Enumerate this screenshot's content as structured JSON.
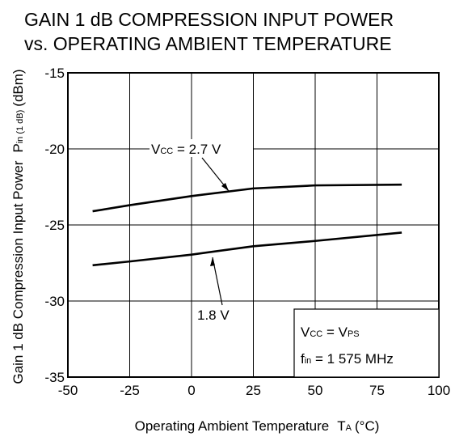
{
  "chart_data": {
    "type": "line",
    "title": [
      "GAIN 1 dB COMPRESSION INPUT POWER",
      "vs. OPERATING AMBIENT TEMPERATURE"
    ],
    "y_label": {
      "text": "Gain 1 dB Compression Input Power",
      "symbol": "P",
      "sub": "in (1 dB)",
      "unit": "(dBm)"
    },
    "x_label": {
      "text": "Operating Ambient Temperature",
      "symbol": "T",
      "sub": "A",
      "unit": "(°C)"
    },
    "x": [
      -40,
      -25,
      0,
      25,
      50,
      85
    ],
    "series": [
      {
        "name": "2.7 V",
        "color": "#000000",
        "values": [
          -24.1,
          -23.7,
          -23.1,
          -22.6,
          -22.4,
          -22.35
        ]
      },
      {
        "name": "1.8 V",
        "color": "#000000",
        "values": [
          -27.65,
          -27.4,
          -26.95,
          -26.4,
          -26.05,
          -25.5
        ]
      }
    ],
    "annotations": {
      "vcc": {
        "symbol": "V",
        "sub": "CC",
        "eq": " = "
      },
      "box": [
        {
          "symbol": "V",
          "sub": "CC",
          "eq": " = V",
          "sub2": "PS"
        },
        {
          "symbol": "f",
          "sub": "in",
          "eq": " = 1 575 MHz"
        }
      ]
    },
    "xlim": [
      -50,
      100
    ],
    "xticks": [
      -50,
      -25,
      0,
      25,
      50,
      75,
      100
    ],
    "ylim": [
      -35,
      -15
    ],
    "yticks": [
      -35,
      -30,
      -25,
      -20,
      -15
    ],
    "grid": true
  }
}
